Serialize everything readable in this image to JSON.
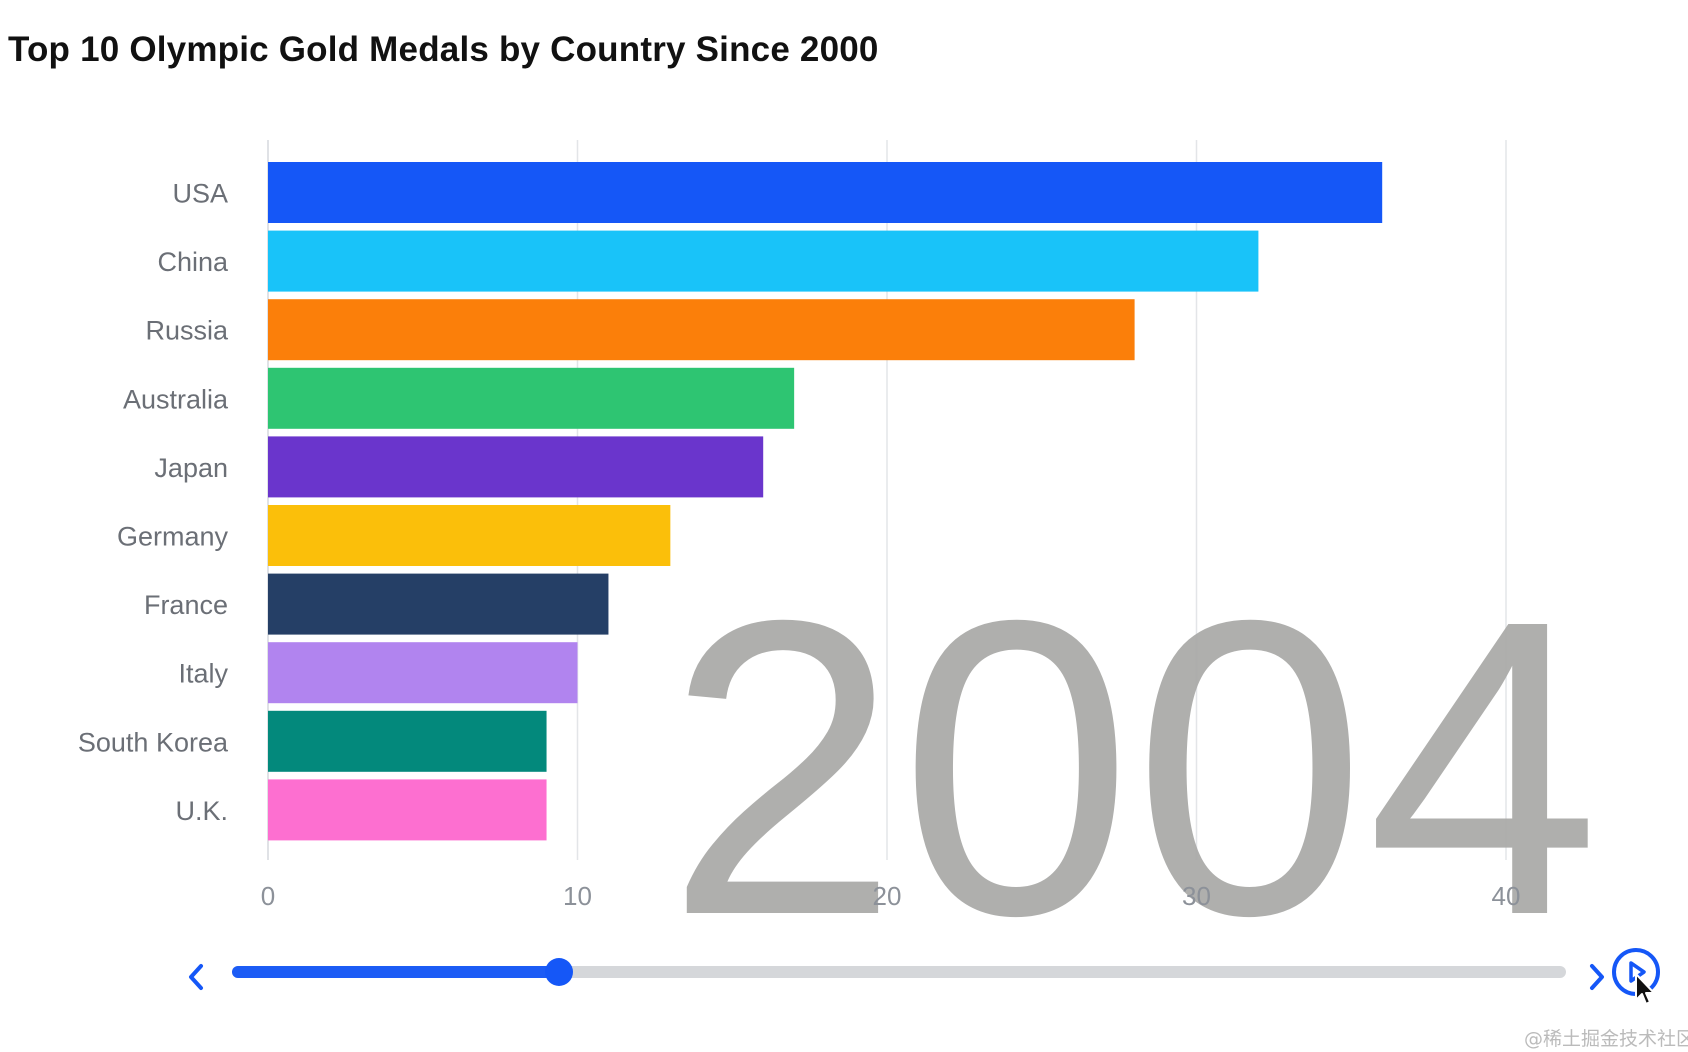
{
  "chart_data": {
    "type": "bar",
    "orientation": "horizontal",
    "title": "Top 10 Olympic Gold Medals by Country Since 2000",
    "categories": [
      "USA",
      "China",
      "Russia",
      "Australia",
      "Japan",
      "Germany",
      "France",
      "Italy",
      "South Korea",
      "U.K."
    ],
    "values": [
      36,
      32,
      28,
      17,
      16,
      13,
      11,
      10,
      9,
      9
    ],
    "colors": [
      "#1557f7",
      "#19c3f9",
      "#fb7f0a",
      "#2ec572",
      "#6a35cc",
      "#fbbf0a",
      "#253f66",
      "#b184ef",
      "#03897c",
      "#fd6fd0"
    ],
    "x_ticks": [
      0,
      10,
      20,
      30,
      40
    ],
    "xlim": [
      0,
      42
    ],
    "grid": true,
    "current_year": "2004"
  },
  "timeline": {
    "progress": 0.245,
    "prev_icon": "chevron-left-icon",
    "next_icon": "chevron-right-icon",
    "play_icon": "play-icon",
    "accent": "#1557f7",
    "track_color": "#d5d7da"
  },
  "watermark": "@稀土掘金技术社区"
}
